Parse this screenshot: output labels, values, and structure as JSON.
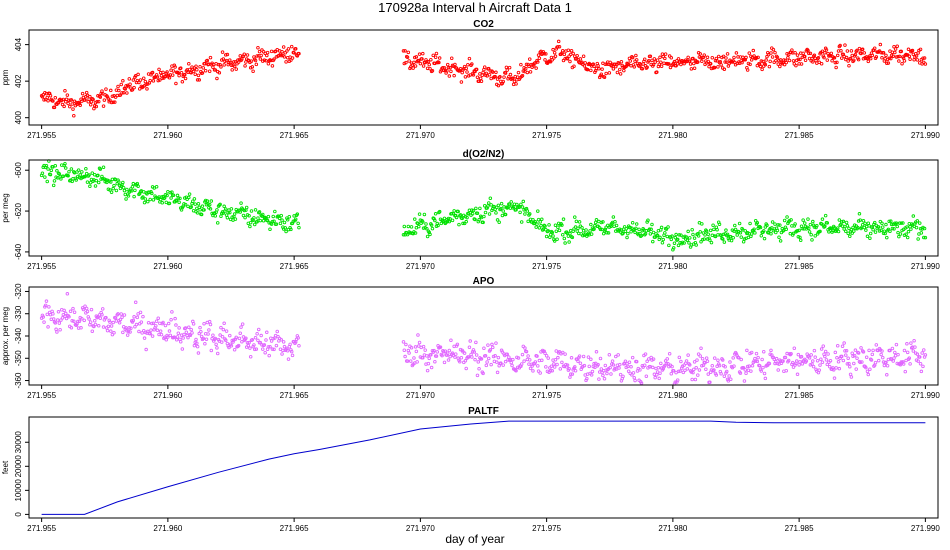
{
  "title": "170928a   Interval h Aircraft Data 1",
  "xlabel": "day of year",
  "chart_data": [
    {
      "type": "scatter",
      "title": "CO2",
      "ylabel": "ppm",
      "color": "#ff0000",
      "xlim": [
        271.9545,
        271.9905
      ],
      "ylim": [
        399.6,
        404.8
      ],
      "xticks": [
        "271.955",
        "271.960",
        "271.965",
        "271.970",
        "271.975",
        "271.980",
        "271.985",
        "271.990"
      ],
      "yticks": [
        "400",
        "402",
        "404"
      ],
      "gaps": [
        [
          271.9652,
          271.9693
        ]
      ],
      "trend_x": [
        271.955,
        271.956,
        271.9575,
        271.9585,
        271.96,
        271.9615,
        271.963,
        271.965,
        271.9693,
        271.971,
        271.9725,
        271.9738,
        271.9745,
        271.9755,
        271.977,
        271.9785,
        271.98,
        271.9825,
        271.985,
        271.9875,
        271.99
      ],
      "trend_y": [
        401.1,
        400.8,
        401.0,
        401.8,
        402.3,
        402.8,
        403.1,
        403.6,
        403.2,
        402.8,
        402.4,
        402.1,
        403.1,
        403.6,
        402.6,
        402.9,
        403.0,
        403.1,
        403.3,
        403.4,
        403.5
      ],
      "noise": 0.45,
      "n_points": 1100
    },
    {
      "type": "scatter",
      "title": "d(O2/N2)",
      "ylabel": "per meg",
      "color": "#00e000",
      "xlim": [
        271.9545,
        271.9905
      ],
      "ylim": [
        -642,
        -595
      ],
      "xticks": [
        "271.955",
        "271.960",
        "271.965",
        "271.970",
        "271.975",
        "271.980",
        "271.985",
        "271.990"
      ],
      "yticks": [
        "-600",
        "-620",
        "-640"
      ],
      "gaps": [
        [
          271.9652,
          271.9693
        ]
      ],
      "trend_x": [
        271.955,
        271.957,
        271.9585,
        271.96,
        271.962,
        271.965,
        271.9693,
        271.971,
        271.9725,
        271.9738,
        271.975,
        271.978,
        271.98,
        271.9825,
        271.985,
        271.99
      ],
      "trend_y": [
        -601,
        -603,
        -609,
        -614,
        -620,
        -626,
        -630,
        -624,
        -620,
        -618,
        -630,
        -628,
        -633,
        -630,
        -628,
        -629
      ],
      "noise": 4.5,
      "n_points": 1100
    },
    {
      "type": "scatter",
      "title": "APO",
      "ylabel": "approx. per meg",
      "color": "#e066ff",
      "xlim": [
        271.9545,
        271.9905
      ],
      "ylim": [
        -362,
        -318
      ],
      "xticks": [
        "271.955",
        "271.960",
        "271.965",
        "271.970",
        "271.975",
        "271.980",
        "271.985",
        "271.990"
      ],
      "yticks": [
        "-320",
        "-330",
        "-340",
        "-350",
        "-360"
      ],
      "gaps": [
        [
          271.9652,
          271.9693
        ]
      ],
      "trend_x": [
        271.955,
        271.957,
        271.96,
        271.962,
        271.965,
        271.9693,
        271.972,
        271.975,
        271.978,
        271.98,
        271.9825,
        271.985,
        271.99
      ],
      "trend_y": [
        -330,
        -333,
        -337,
        -341,
        -345,
        -347,
        -349,
        -352,
        -354,
        -355,
        -353,
        -351,
        -349
      ],
      "noise": 6,
      "n_points": 1100
    },
    {
      "type": "line",
      "title": "PALTF",
      "ylabel": "feet",
      "color": "#0000cd",
      "xlim": [
        271.9545,
        271.9905
      ],
      "ylim": [
        -1500,
        40500
      ],
      "xticks": [
        "271.955",
        "271.960",
        "271.965",
        "271.970",
        "271.975",
        "271.980",
        "271.985",
        "271.990"
      ],
      "yticks": [
        "0",
        "10000",
        "20000",
        "30000"
      ],
      "x": [
        271.955,
        271.9567,
        271.958,
        271.96,
        271.962,
        271.964,
        271.965,
        271.966,
        271.968,
        271.97,
        271.972,
        271.9735,
        271.975,
        271.9775,
        271.98,
        271.9815,
        271.9825,
        271.984,
        271.986,
        271.988,
        271.99
      ],
      "y": [
        0,
        0,
        5200,
        11500,
        17500,
        23000,
        25200,
        27000,
        31000,
        35500,
        37600,
        38800,
        38800,
        38800,
        38800,
        38800,
        38300,
        38100,
        38100,
        38100,
        38100
      ]
    }
  ]
}
